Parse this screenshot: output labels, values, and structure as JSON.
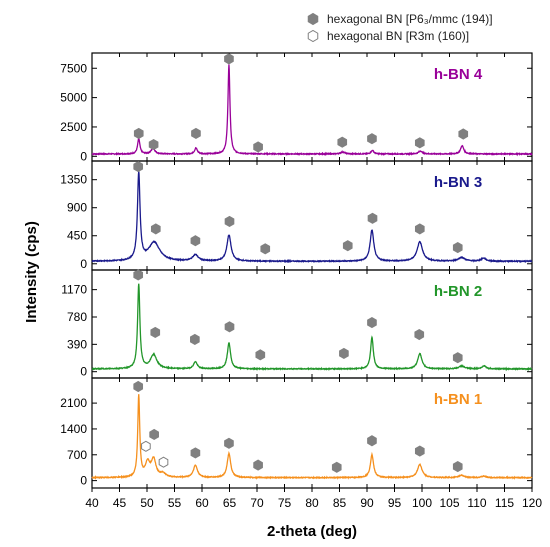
{
  "chart_data": {
    "type": "line",
    "xlabel": "2-theta (deg)",
    "ylabel": "Intensity (cps)",
    "xlim": [
      40,
      120
    ],
    "x_ticks": [
      40,
      45,
      50,
      55,
      60,
      65,
      70,
      75,
      80,
      85,
      90,
      95,
      100,
      105,
      110,
      115,
      120
    ],
    "legend": {
      "placement": "top",
      "entries": [
        {
          "marker": "filled-hexagon",
          "label": "hexagonal BN [P6₃/mmc (194)]"
        },
        {
          "marker": "open-hexagon",
          "label": "hexagonal BN [R3m (160)]"
        }
      ]
    },
    "panels": [
      {
        "label": "h-BN 4",
        "color": "#990099",
        "ylim": [
          -400,
          8800
        ],
        "y_ticks": [
          0,
          2500,
          5000,
          7500
        ],
        "baseline": 200,
        "peaks": [
          {
            "x": 48.5,
            "y": 1300,
            "w": 0.25
          },
          {
            "x": 51.1,
            "y": 480,
            "w": 0.4
          },
          {
            "x": 58.9,
            "y": 500,
            "w": 0.3
          },
          {
            "x": 64.9,
            "y": 7600,
            "w": 0.22
          },
          {
            "x": 85.6,
            "y": 160,
            "w": 0.5
          },
          {
            "x": 91.0,
            "y": 300,
            "w": 0.3
          },
          {
            "x": 99.7,
            "y": 250,
            "w": 0.4
          },
          {
            "x": 107.3,
            "y": 700,
            "w": 0.35
          }
        ],
        "markers": [
          {
            "x": 48.5,
            "y": 1950,
            "type": "filled"
          },
          {
            "x": 51.2,
            "y": 1000,
            "type": "filled"
          },
          {
            "x": 58.9,
            "y": 1950,
            "type": "filled"
          },
          {
            "x": 64.9,
            "y": 8300,
            "type": "filled"
          },
          {
            "x": 70.2,
            "y": 800,
            "type": "filled"
          },
          {
            "x": 85.5,
            "y": 1200,
            "type": "filled"
          },
          {
            "x": 90.9,
            "y": 1500,
            "type": "filled"
          },
          {
            "x": 99.6,
            "y": 1150,
            "type": "filled"
          },
          {
            "x": 107.5,
            "y": 1900,
            "type": "filled"
          }
        ]
      },
      {
        "label": "h-BN 3",
        "color": "#1a1a8c",
        "ylim": [
          -100,
          1650
        ],
        "y_ticks": [
          0,
          450,
          900,
          1350
        ],
        "baseline": 40,
        "peaks": [
          {
            "x": 48.5,
            "y": 1400,
            "w": 0.28
          },
          {
            "x": 51.3,
            "y": 300,
            "w": 1.2
          },
          {
            "x": 58.8,
            "y": 100,
            "w": 0.6
          },
          {
            "x": 64.9,
            "y": 420,
            "w": 0.45
          },
          {
            "x": 90.9,
            "y": 500,
            "w": 0.4
          },
          {
            "x": 99.6,
            "y": 310,
            "w": 0.6
          },
          {
            "x": 107.2,
            "y": 60,
            "w": 0.7
          },
          {
            "x": 111.2,
            "y": 50,
            "w": 0.5
          }
        ],
        "markers": [
          {
            "x": 48.4,
            "y": 1560,
            "type": "filled"
          },
          {
            "x": 51.6,
            "y": 560,
            "type": "filled"
          },
          {
            "x": 58.8,
            "y": 370,
            "type": "filled"
          },
          {
            "x": 65.0,
            "y": 680,
            "type": "filled"
          },
          {
            "x": 71.5,
            "y": 240,
            "type": "filled"
          },
          {
            "x": 86.5,
            "y": 290,
            "type": "filled"
          },
          {
            "x": 91.0,
            "y": 730,
            "type": "filled"
          },
          {
            "x": 99.6,
            "y": 560,
            "type": "filled"
          },
          {
            "x": 106.5,
            "y": 260,
            "type": "filled"
          }
        ]
      },
      {
        "label": "h-BN 2",
        "color": "#22962a",
        "ylim": [
          -90,
          1450
        ],
        "y_ticks": [
          0,
          390,
          780,
          1170
        ],
        "baseline": 40,
        "peaks": [
          {
            "x": 48.5,
            "y": 1200,
            "w": 0.25
          },
          {
            "x": 51.2,
            "y": 200,
            "w": 0.7
          },
          {
            "x": 58.8,
            "y": 100,
            "w": 0.4
          },
          {
            "x": 64.9,
            "y": 370,
            "w": 0.35
          },
          {
            "x": 90.9,
            "y": 450,
            "w": 0.3
          },
          {
            "x": 99.6,
            "y": 220,
            "w": 0.45
          },
          {
            "x": 107.2,
            "y": 40,
            "w": 0.6
          },
          {
            "x": 111.3,
            "y": 45,
            "w": 0.4
          }
        ],
        "markers": [
          {
            "x": 48.4,
            "y": 1380,
            "type": "filled"
          },
          {
            "x": 51.5,
            "y": 560,
            "type": "filled"
          },
          {
            "x": 58.7,
            "y": 460,
            "type": "filled"
          },
          {
            "x": 65.0,
            "y": 640,
            "type": "filled"
          },
          {
            "x": 70.6,
            "y": 240,
            "type": "filled"
          },
          {
            "x": 85.8,
            "y": 260,
            "type": "filled"
          },
          {
            "x": 90.9,
            "y": 700,
            "type": "filled"
          },
          {
            "x": 99.5,
            "y": 530,
            "type": "filled"
          },
          {
            "x": 106.5,
            "y": 200,
            "type": "filled"
          }
        ]
      },
      {
        "label": "h-BN 1",
        "color": "#f5901e",
        "ylim": [
          -200,
          2780
        ],
        "y_ticks": [
          0,
          700,
          1400,
          2100
        ],
        "baseline": 80,
        "peaks": [
          {
            "x": 48.5,
            "y": 2200,
            "w": 0.22
          },
          {
            "x": 50.1,
            "y": 380,
            "w": 0.5
          },
          {
            "x": 51.2,
            "y": 480,
            "w": 0.5
          },
          {
            "x": 52.9,
            "y": 100,
            "w": 0.6
          },
          {
            "x": 58.8,
            "y": 330,
            "w": 0.45
          },
          {
            "x": 64.9,
            "y": 650,
            "w": 0.38
          },
          {
            "x": 90.9,
            "y": 620,
            "w": 0.35
          },
          {
            "x": 99.6,
            "y": 360,
            "w": 0.5
          },
          {
            "x": 107.2,
            "y": 60,
            "w": 0.6
          },
          {
            "x": 111.2,
            "y": 40,
            "w": 0.5
          }
        ],
        "markers": [
          {
            "x": 48.4,
            "y": 2550,
            "type": "filled"
          },
          {
            "x": 51.3,
            "y": 1250,
            "type": "filled"
          },
          {
            "x": 49.8,
            "y": 930,
            "type": "open"
          },
          {
            "x": 53.0,
            "y": 500,
            "type": "open"
          },
          {
            "x": 58.8,
            "y": 750,
            "type": "filled"
          },
          {
            "x": 64.9,
            "y": 1010,
            "type": "filled"
          },
          {
            "x": 70.2,
            "y": 420,
            "type": "filled"
          },
          {
            "x": 84.5,
            "y": 360,
            "type": "filled"
          },
          {
            "x": 90.9,
            "y": 1080,
            "type": "filled"
          },
          {
            "x": 99.6,
            "y": 800,
            "type": "filled"
          },
          {
            "x": 106.5,
            "y": 380,
            "type": "filled"
          }
        ]
      }
    ]
  }
}
